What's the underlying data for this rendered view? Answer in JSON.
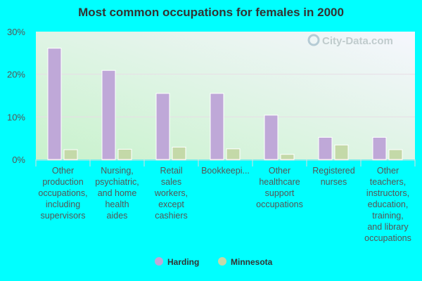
{
  "chart_data": {
    "type": "bar",
    "title": "Most common occupations for females in 2000",
    "categories": [
      [
        "Other",
        "production",
        "occupations,",
        "including",
        "supervisors"
      ],
      [
        "Nursing,",
        "psychiatric,",
        "and home",
        "health",
        "aides"
      ],
      [
        "Retail",
        "sales",
        "workers,",
        "except",
        "cashiers"
      ],
      [
        "Bookkeepi..."
      ],
      [
        "Other",
        "healthcare",
        "support",
        "occupations"
      ],
      [
        "Registered",
        "nurses"
      ],
      [
        "Other",
        "teachers,",
        "instructors,",
        "education,",
        "training,",
        "and library",
        "occupations"
      ]
    ],
    "series": [
      {
        "name": "Harding",
        "color": "#bfa8d8",
        "values": [
          26.1,
          20.9,
          15.5,
          15.5,
          10.4,
          5.2,
          5.2
        ]
      },
      {
        "name": "Minnesota",
        "color": "#c4d9a8",
        "values": [
          2.3,
          2.4,
          2.9,
          2.5,
          1.2,
          3.4,
          2.3
        ]
      }
    ],
    "yticks": [
      "0%",
      "10%",
      "20%",
      "30%"
    ],
    "ylim": [
      0,
      30
    ],
    "grid": true,
    "legend": "bottom",
    "watermark": "City-Data.com"
  }
}
